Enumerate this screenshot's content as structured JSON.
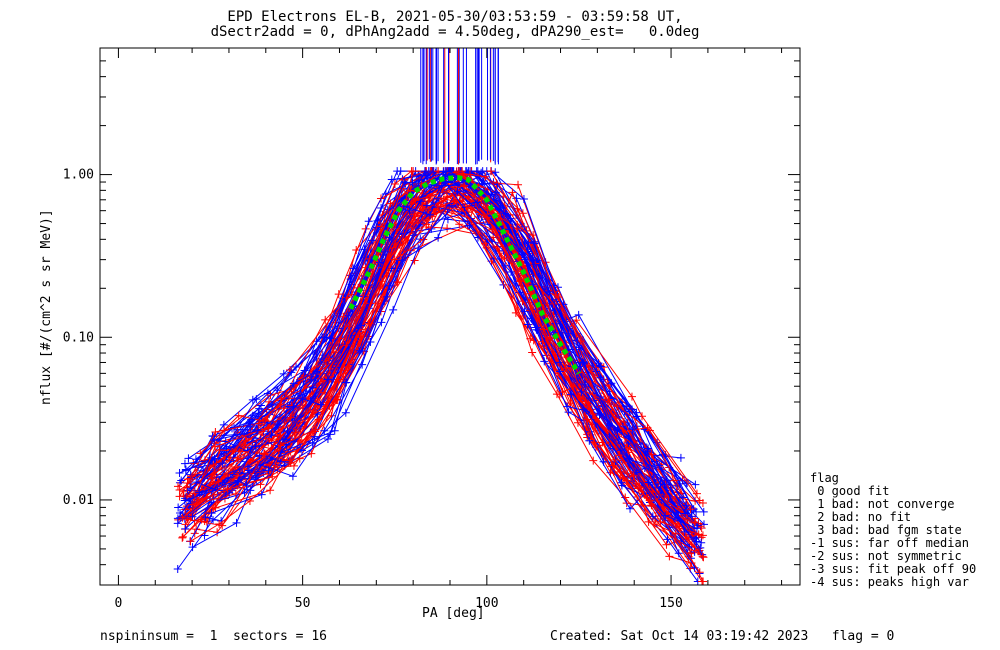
{
  "title": {
    "line1": "EPD Electrons EL-B, 2021-05-30/03:53:59 - 03:59:58 UT,",
    "line2": "dSectr2add = 0, dPhAng2add = 4.50deg, dPA290_est=   0.0deg"
  },
  "footer": {
    "left": "nspininsum =  1  sectors = 16",
    "right": "Created: Sat Oct 14 03:19:42 2023   flag = 0"
  },
  "legend": {
    "title": "flag",
    "items": [
      " 0 good fit",
      " 1 bad: not converge",
      " 2 bad: no fit",
      " 3 bad: bad fgm state",
      "-1 sus: far off median",
      "-2 sus: not symmetric",
      "-3 sus: fit peak off 90",
      "-4 sus: peaks high var"
    ]
  },
  "chart_data": {
    "type": "line",
    "xlabel": "PA [deg]",
    "ylabel": "nflux [#/(cm^2 s sr MeV)]",
    "xlim": [
      -5,
      185
    ],
    "ylim": [
      0.003,
      6.0
    ],
    "yscale": "log",
    "x_ticks": [
      0,
      50,
      100,
      150
    ],
    "x_tick_labels": [
      "0",
      "50",
      "100",
      "150"
    ],
    "y_ticks": [
      0.01,
      0.1,
      1.0
    ],
    "y_tick_labels": [
      "0.01",
      "0.10",
      "1.00"
    ],
    "colors": {
      "series_a": "#ff0000",
      "series_b": "#0000ff",
      "fit": "#00dd00"
    },
    "num_curves_per_color": 48,
    "representative_profile": {
      "pa": [
        25,
        40,
        55,
        65,
        75,
        82,
        90,
        96,
        105,
        115,
        125,
        140,
        155
      ],
      "flux": [
        0.012,
        0.022,
        0.045,
        0.13,
        0.45,
        0.78,
        0.9,
        0.85,
        0.5,
        0.16,
        0.055,
        0.018,
        0.007
      ]
    },
    "fit_curve": {
      "pa": [
        63,
        68,
        72,
        76,
        80,
        84,
        88,
        92,
        95,
        100,
        105,
        110,
        115,
        120,
        125
      ],
      "flux": [
        0.15,
        0.25,
        0.4,
        0.6,
        0.78,
        0.88,
        0.94,
        0.96,
        0.93,
        0.7,
        0.42,
        0.25,
        0.14,
        0.09,
        0.06
      ]
    },
    "spikes": {
      "pa_range": [
        82,
        104
      ],
      "base_flux": 1.2,
      "top_flux": 6.0
    }
  }
}
